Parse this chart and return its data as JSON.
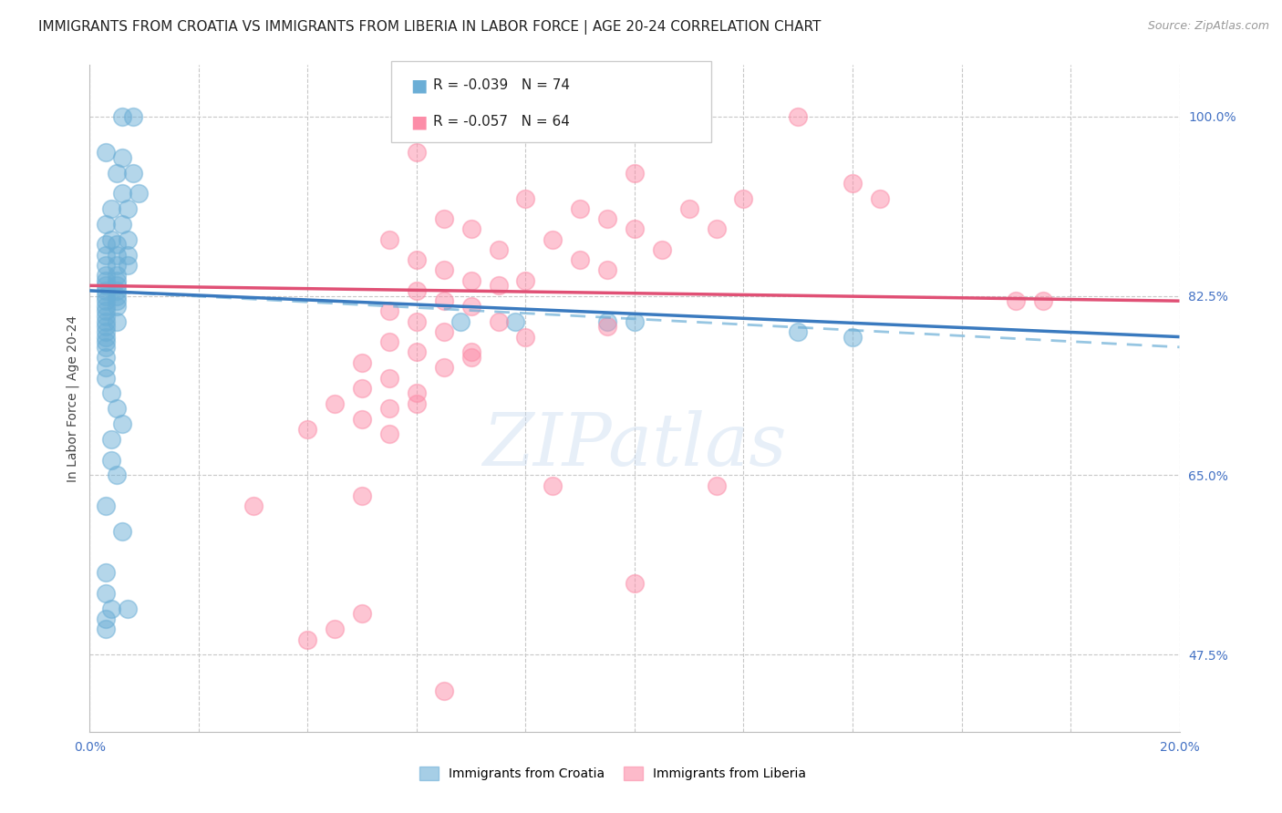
{
  "title": "IMMIGRANTS FROM CROATIA VS IMMIGRANTS FROM LIBERIA IN LABOR FORCE | AGE 20-24 CORRELATION CHART",
  "source": "Source: ZipAtlas.com",
  "ylabel": "In Labor Force | Age 20-24",
  "xlim": [
    0.0,
    0.2
  ],
  "ylim": [
    0.4,
    1.05
  ],
  "r_croatia": -0.039,
  "n_croatia": 74,
  "r_liberia": -0.057,
  "n_liberia": 64,
  "color_croatia": "#6baed6",
  "color_liberia": "#fc8da8",
  "legend_label_croatia": "Immigrants from Croatia",
  "legend_label_liberia": "Immigrants from Liberia",
  "watermark": "ZIPatlas",
  "right_tick_color": "#4472c4",
  "ytick_labels": [
    1.0,
    0.825,
    0.65,
    0.475
  ],
  "ytick_label_strs": [
    "100.0%",
    "82.5%",
    "65.0%",
    "47.5%"
  ],
  "croatia_scatter": [
    [
      0.006,
      1.0
    ],
    [
      0.008,
      1.0
    ],
    [
      0.003,
      0.965
    ],
    [
      0.006,
      0.96
    ],
    [
      0.005,
      0.945
    ],
    [
      0.008,
      0.945
    ],
    [
      0.006,
      0.925
    ],
    [
      0.009,
      0.925
    ],
    [
      0.004,
      0.91
    ],
    [
      0.007,
      0.91
    ],
    [
      0.003,
      0.895
    ],
    [
      0.006,
      0.895
    ],
    [
      0.004,
      0.88
    ],
    [
      0.007,
      0.88
    ],
    [
      0.003,
      0.875
    ],
    [
      0.005,
      0.875
    ],
    [
      0.003,
      0.865
    ],
    [
      0.005,
      0.865
    ],
    [
      0.007,
      0.865
    ],
    [
      0.003,
      0.855
    ],
    [
      0.005,
      0.855
    ],
    [
      0.007,
      0.855
    ],
    [
      0.003,
      0.845
    ],
    [
      0.005,
      0.845
    ],
    [
      0.003,
      0.84
    ],
    [
      0.005,
      0.84
    ],
    [
      0.003,
      0.835
    ],
    [
      0.005,
      0.835
    ],
    [
      0.003,
      0.83
    ],
    [
      0.005,
      0.83
    ],
    [
      0.003,
      0.825
    ],
    [
      0.005,
      0.825
    ],
    [
      0.003,
      0.82
    ],
    [
      0.005,
      0.82
    ],
    [
      0.003,
      0.815
    ],
    [
      0.005,
      0.815
    ],
    [
      0.003,
      0.81
    ],
    [
      0.003,
      0.805
    ],
    [
      0.003,
      0.8
    ],
    [
      0.005,
      0.8
    ],
    [
      0.003,
      0.795
    ],
    [
      0.003,
      0.79
    ],
    [
      0.003,
      0.785
    ],
    [
      0.003,
      0.78
    ],
    [
      0.003,
      0.775
    ],
    [
      0.003,
      0.765
    ],
    [
      0.003,
      0.755
    ],
    [
      0.003,
      0.745
    ],
    [
      0.004,
      0.73
    ],
    [
      0.005,
      0.715
    ],
    [
      0.006,
      0.7
    ],
    [
      0.004,
      0.685
    ],
    [
      0.004,
      0.665
    ],
    [
      0.005,
      0.65
    ],
    [
      0.003,
      0.62
    ],
    [
      0.006,
      0.595
    ],
    [
      0.003,
      0.555
    ],
    [
      0.003,
      0.535
    ],
    [
      0.004,
      0.52
    ],
    [
      0.007,
      0.52
    ],
    [
      0.003,
      0.51
    ],
    [
      0.003,
      0.5
    ],
    [
      0.068,
      0.8
    ],
    [
      0.078,
      0.8
    ],
    [
      0.095,
      0.8
    ],
    [
      0.1,
      0.8
    ],
    [
      0.13,
      0.79
    ],
    [
      0.14,
      0.785
    ]
  ],
  "liberia_scatter": [
    [
      0.13,
      1.0
    ],
    [
      0.06,
      0.965
    ],
    [
      0.1,
      0.945
    ],
    [
      0.14,
      0.935
    ],
    [
      0.08,
      0.92
    ],
    [
      0.12,
      0.92
    ],
    [
      0.145,
      0.92
    ],
    [
      0.09,
      0.91
    ],
    [
      0.11,
      0.91
    ],
    [
      0.065,
      0.9
    ],
    [
      0.095,
      0.9
    ],
    [
      0.07,
      0.89
    ],
    [
      0.1,
      0.89
    ],
    [
      0.115,
      0.89
    ],
    [
      0.055,
      0.88
    ],
    [
      0.085,
      0.88
    ],
    [
      0.075,
      0.87
    ],
    [
      0.105,
      0.87
    ],
    [
      0.06,
      0.86
    ],
    [
      0.09,
      0.86
    ],
    [
      0.065,
      0.85
    ],
    [
      0.095,
      0.85
    ],
    [
      0.07,
      0.84
    ],
    [
      0.08,
      0.84
    ],
    [
      0.075,
      0.835
    ],
    [
      0.06,
      0.83
    ],
    [
      0.065,
      0.82
    ],
    [
      0.07,
      0.815
    ],
    [
      0.055,
      0.81
    ],
    [
      0.06,
      0.8
    ],
    [
      0.075,
      0.8
    ],
    [
      0.065,
      0.79
    ],
    [
      0.08,
      0.785
    ],
    [
      0.055,
      0.78
    ],
    [
      0.06,
      0.77
    ],
    [
      0.07,
      0.77
    ],
    [
      0.05,
      0.76
    ],
    [
      0.065,
      0.755
    ],
    [
      0.055,
      0.745
    ],
    [
      0.05,
      0.735
    ],
    [
      0.06,
      0.73
    ],
    [
      0.045,
      0.72
    ],
    [
      0.055,
      0.715
    ],
    [
      0.05,
      0.705
    ],
    [
      0.04,
      0.695
    ],
    [
      0.055,
      0.69
    ],
    [
      0.17,
      0.82
    ],
    [
      0.175,
      0.82
    ],
    [
      0.095,
      0.795
    ],
    [
      0.07,
      0.765
    ],
    [
      0.06,
      0.72
    ],
    [
      0.085,
      0.64
    ],
    [
      0.115,
      0.64
    ],
    [
      0.05,
      0.63
    ],
    [
      0.03,
      0.62
    ],
    [
      0.1,
      0.545
    ],
    [
      0.05,
      0.515
    ],
    [
      0.045,
      0.5
    ],
    [
      0.04,
      0.49
    ],
    [
      0.065,
      0.44
    ]
  ],
  "croatia_trendline": [
    [
      0.0,
      0.83
    ],
    [
      0.2,
      0.785
    ]
  ],
  "croatia_trendline_dashed": [
    [
      0.0,
      0.83
    ],
    [
      0.2,
      0.775
    ]
  ],
  "liberia_trendline": [
    [
      0.0,
      0.835
    ],
    [
      0.2,
      0.82
    ]
  ]
}
